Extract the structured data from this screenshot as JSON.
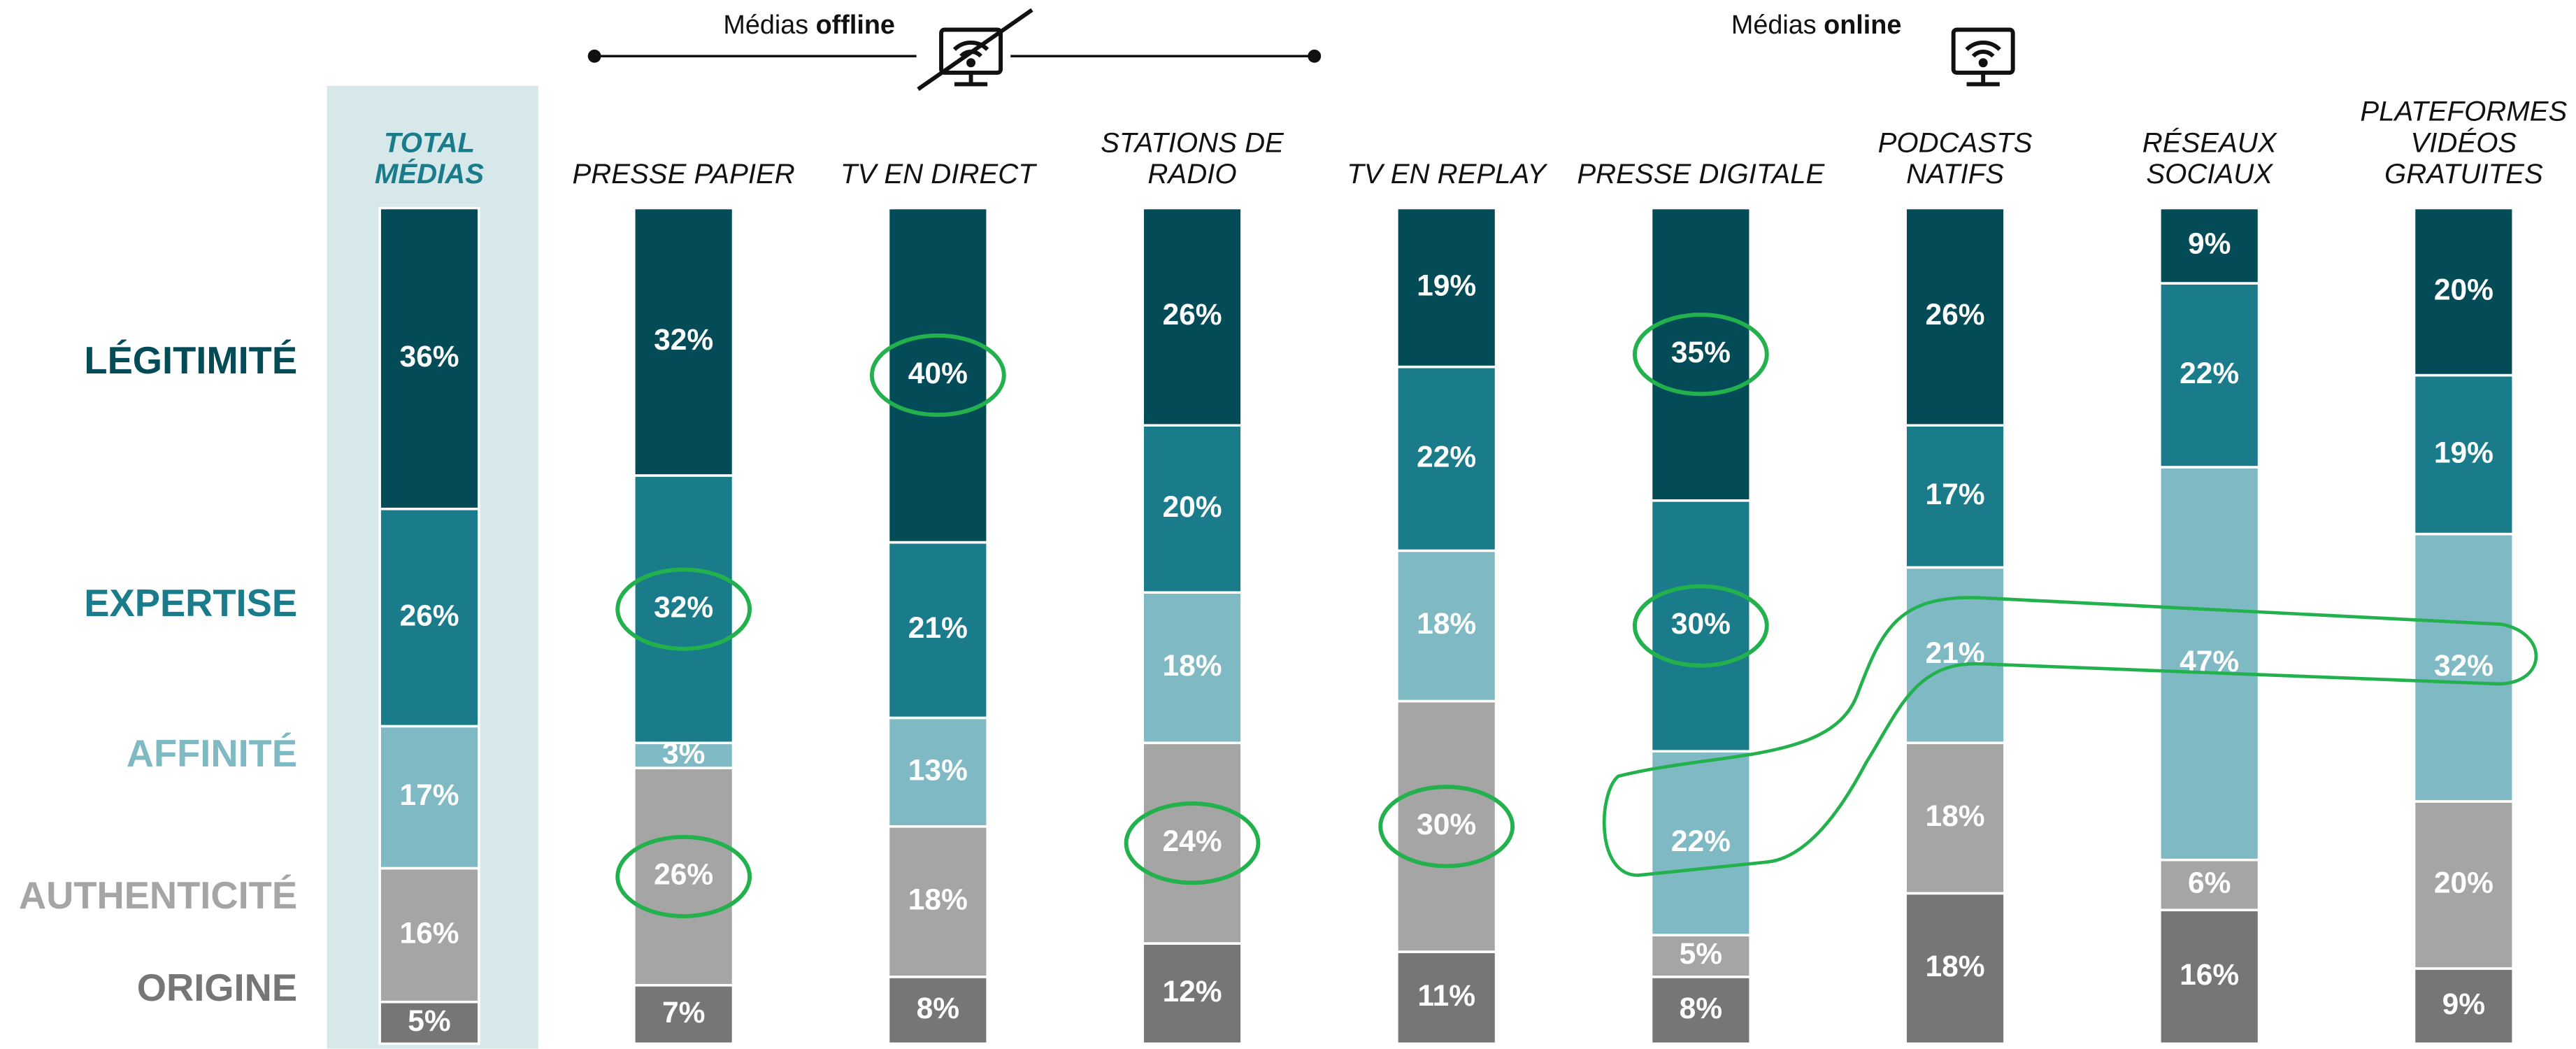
{
  "chart_data": {
    "type": "stacked_bar",
    "annotations": [
      {
        "prefix": "Médias",
        "emphasis": "offline"
      },
      {
        "prefix": "Médias",
        "emphasis": "online"
      }
    ],
    "categories": [
      "TOTAL MÉDIAS",
      "PRESSE PAPIER",
      "TV EN DIRECT",
      "STATIONS DE RADIO",
      "TV EN REPLAY",
      "PRESSE DIGITALE",
      "PODCASTS NATIFS",
      "RÉSEAUX SOCIAUX",
      "PLATEFORMES VIDÉOS GRATUITES"
    ],
    "series": [
      {
        "name": "LÉGITIMITÉ",
        "color": "#024b57",
        "values": [
          36,
          32,
          40,
          26,
          19,
          35,
          26,
          9,
          20
        ],
        "value_labels": [
          "36%",
          "32%",
          "40%",
          "26%",
          "19%",
          "35%",
          "26%",
          "9%",
          "20%"
        ]
      },
      {
        "name": "EXPERTISE",
        "color": "#1a7c8a",
        "values": [
          26,
          32,
          21,
          20,
          22,
          30,
          17,
          22,
          19
        ],
        "value_labels": [
          "26%",
          "32%",
          "21%",
          "20%",
          "22%",
          "30%",
          "17%",
          "22%",
          "19%"
        ]
      },
      {
        "name": "AFFINITÉ",
        "color": "#7fbac4",
        "values": [
          17,
          3,
          13,
          18,
          18,
          22,
          21,
          47,
          32
        ],
        "value_labels": [
          "17%",
          "3%",
          "13%",
          "18%",
          "18%",
          "22%",
          "21%",
          "47%",
          "32%"
        ]
      },
      {
        "name": "AUTHENTICITÉ",
        "color": "#a5a5a5",
        "values": [
          16,
          26,
          18,
          24,
          30,
          5,
          18,
          6,
          20
        ],
        "value_labels": [
          "16%",
          "26%",
          "18%",
          "24%",
          "30%",
          "5%",
          "18%",
          "6%",
          "20%"
        ]
      },
      {
        "name": "ORIGINE",
        "color": "#767676",
        "values": [
          5,
          7,
          8,
          12,
          11,
          8,
          18,
          16,
          9
        ],
        "value_labels": [
          "5%",
          "7%",
          "8%",
          "12%",
          "11%",
          "8%",
          "18%",
          "16%",
          "9%"
        ]
      }
    ],
    "ylim": [
      0,
      100
    ],
    "highlights": [
      [
        0,
        2
      ],
      [
        0,
        5
      ],
      [
        1,
        1
      ],
      [
        1,
        5
      ],
      [
        3,
        1
      ],
      [
        3,
        3
      ],
      [
        3,
        4
      ]
    ],
    "highlight_color": "#22b14c"
  }
}
